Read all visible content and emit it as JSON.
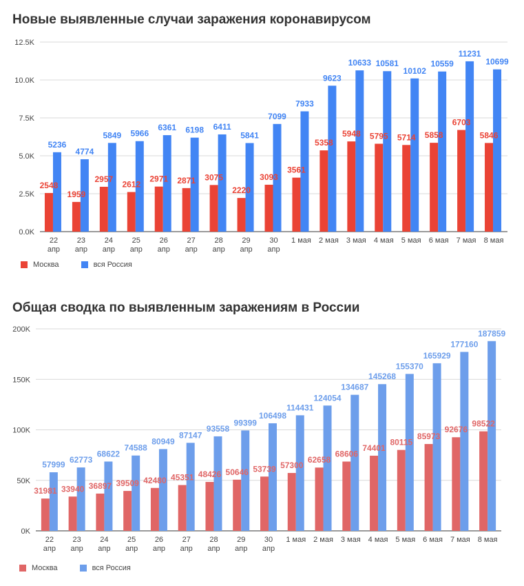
{
  "chart_data": [
    {
      "type": "bar",
      "title": "Новые выявленные случаи заражения коронавирусом",
      "categories": [
        "22 апр",
        "23 апр",
        "24 апр",
        "25 апр",
        "26 апр",
        "27 апр",
        "28 апр",
        "29 апр",
        "30 апр",
        "1 мая",
        "2 мая",
        "3 мая",
        "4 мая",
        "5 мая",
        "6 мая",
        "7 мая",
        "8 мая"
      ],
      "series": [
        {
          "name": "Москва",
          "color": "#ea4335",
          "label_color": "#ea4335",
          "values": [
            2548,
            1959,
            2957,
            2612,
            2971,
            2871,
            3075,
            2220,
            3093,
            3561,
            5358,
            5948,
            5795,
            5714,
            5858,
            6703,
            5846
          ]
        },
        {
          "name": "вся Россия",
          "color": "#4285f4",
          "label_color": "#4285f4",
          "values": [
            5236,
            4774,
            5849,
            5966,
            6361,
            6198,
            6411,
            5841,
            7099,
            7933,
            9623,
            10633,
            10581,
            10102,
            10559,
            11231,
            10699
          ]
        }
      ],
      "ylim": [
        0,
        12500
      ],
      "yticks": [
        {
          "value": 0,
          "label": "0.0K"
        },
        {
          "value": 2500,
          "label": "2.5K"
        },
        {
          "value": 5000,
          "label": "5.0K"
        },
        {
          "value": 7500,
          "label": "7.5K"
        },
        {
          "value": 10000,
          "label": "10.0K"
        },
        {
          "value": 12500,
          "label": "12.5K"
        }
      ],
      "grid": true,
      "legend": "bottom-left",
      "xlabel": "",
      "ylabel": ""
    },
    {
      "type": "bar",
      "title": "Общая сводка по выявленным заражениям в России",
      "categories": [
        "22 апр",
        "23 апр",
        "24 апр",
        "25 апр",
        "26 апр",
        "27 апр",
        "28 апр",
        "29 апр",
        "30 апр",
        "1 мая",
        "2 мая",
        "3 мая",
        "4 мая",
        "5 мая",
        "6 мая",
        "7 мая",
        "8 мая"
      ],
      "series": [
        {
          "name": "Москва",
          "color": "#e06666",
          "label_color": "#e06666",
          "values": [
            31981,
            33940,
            36897,
            39509,
            42480,
            45351,
            48426,
            50646,
            53739,
            57300,
            62658,
            68606,
            74401,
            80115,
            85973,
            92676,
            98522
          ]
        },
        {
          "name": "вся Россия",
          "color": "#6d9eeb",
          "label_color": "#6d9eeb",
          "values": [
            57999,
            62773,
            68622,
            74588,
            80949,
            87147,
            93558,
            99399,
            106498,
            114431,
            124054,
            134687,
            145268,
            155370,
            165929,
            177160,
            187859
          ]
        }
      ],
      "ylim": [
        0,
        200000
      ],
      "yticks": [
        {
          "value": 0,
          "label": "0K"
        },
        {
          "value": 50000,
          "label": "50K"
        },
        {
          "value": 100000,
          "label": "100K"
        },
        {
          "value": 150000,
          "label": "150K"
        },
        {
          "value": 200000,
          "label": "200K"
        }
      ],
      "grid": true,
      "legend": "bottom-left",
      "xlabel": "",
      "ylabel": ""
    }
  ]
}
